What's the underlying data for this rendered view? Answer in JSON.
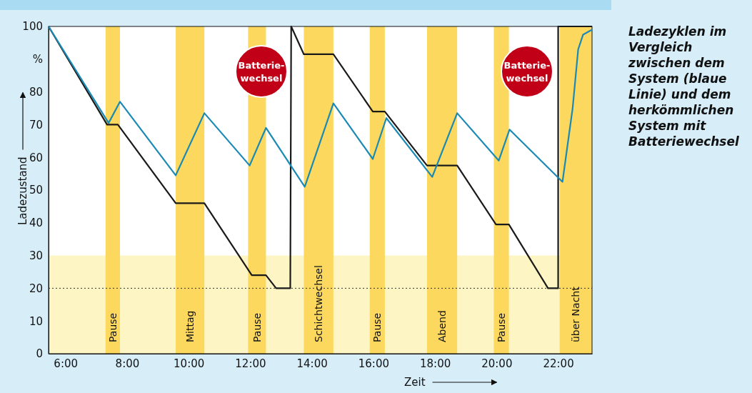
{
  "chart_data": {
    "type": "line",
    "title": "Ladezyklen im Vergleich zwischen dem System (blaue Linie) und dem herkömmlichen System mit Batteriewechsel",
    "xlabel": "Zeit",
    "ylabel": "Ladezustand",
    "xlim": [
      5.45,
      23.1
    ],
    "ylim": [
      0,
      100
    ],
    "xticks": [
      {
        "value": 6,
        "label": "6:00"
      },
      {
        "value": 8,
        "label": "8:00"
      },
      {
        "value": 10,
        "label": "10:00"
      },
      {
        "value": 12,
        "label": "12:00"
      },
      {
        "value": 14,
        "label": "14:00"
      },
      {
        "value": 16,
        "label": "16:00"
      },
      {
        "value": 18,
        "label": "18:00"
      },
      {
        "value": 20,
        "label": "20:00"
      },
      {
        "value": 22,
        "label": "22:00"
      }
    ],
    "yticks": [
      0,
      10,
      20,
      30,
      40,
      50,
      60,
      70,
      80,
      {
        "value": 90,
        "label": "%"
      },
      100
    ],
    "grid": false,
    "marker": "none",
    "line_style": "solid",
    "series": [
      {
        "color": "#1a1a1a",
        "x": [
          5.45,
          7.35,
          7.7,
          9.58,
          10.51,
          12.05,
          12.51,
          12.84,
          13.3,
          13.33,
          13.74,
          14.7,
          15.98,
          16.37,
          17.74,
          18.72,
          19.98,
          20.4,
          21.67,
          22.0,
          22.0,
          23.1
        ],
        "values": [
          100,
          70,
          70,
          46,
          46,
          24,
          24,
          20,
          20,
          100,
          91.5,
          91.5,
          74,
          74,
          57.5,
          57.5,
          39.5,
          39.5,
          20,
          20,
          100,
          100
        ]
      },
      {
        "color": "#1a8ab5",
        "x": [
          5.45,
          7.4,
          7.77,
          9.58,
          10.51,
          11.98,
          12.51,
          13.77,
          14.7,
          15.98,
          16.42,
          17.91,
          18.72,
          20.07,
          20.42,
          22.14,
          22.47,
          22.65,
          22.81,
          23.1
        ],
        "values": [
          100,
          70.5,
          77,
          54.5,
          73.5,
          57.5,
          69,
          51,
          76.5,
          59.5,
          72,
          54,
          73.5,
          59,
          68.5,
          52.5,
          75,
          93,
          97.5,
          99
        ]
      }
    ],
    "bands": [
      {
        "axis": "y",
        "from": 0,
        "to": 30,
        "color": "#fdf6c4"
      },
      {
        "axis": "x",
        "from": 7.3,
        "to": 7.77,
        "label": "Pause",
        "color": "#fcd95e"
      },
      {
        "axis": "x",
        "from": 9.58,
        "to": 10.51,
        "label": "Mittag",
        "color": "#fcd95e"
      },
      {
        "axis": "x",
        "from": 11.93,
        "to": 12.51,
        "label": "Pause",
        "color": "#fcd95e"
      },
      {
        "axis": "x",
        "from": 13.74,
        "to": 14.7,
        "label": "Schichtwechsel",
        "color": "#fcd95e"
      },
      {
        "axis": "x",
        "from": 15.88,
        "to": 16.37,
        "label": "Pause",
        "color": "#fcd95e"
      },
      {
        "axis": "x",
        "from": 17.74,
        "to": 18.72,
        "label": "Abend",
        "color": "#fcd95e"
      },
      {
        "axis": "x",
        "from": 19.91,
        "to": 20.4,
        "label": "Pause",
        "color": "#fcd95e"
      },
      {
        "axis": "x",
        "from": 22.05,
        "to": 23.1,
        "label": "über Nacht",
        "color": "#fcd95e"
      }
    ],
    "ref_lines": [
      {
        "axis": "y",
        "value": 20,
        "color": "#333333",
        "line_style": "dotted"
      }
    ],
    "annotations": [
      "Batterie-wechsel",
      "Batterie-wechsel"
    ]
  }
}
